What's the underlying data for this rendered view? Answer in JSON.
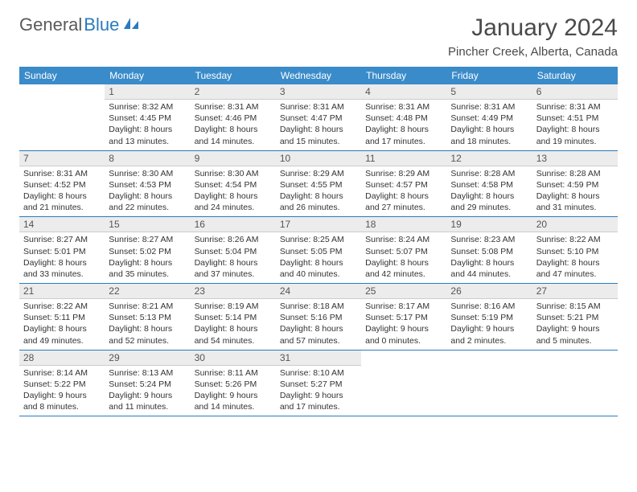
{
  "logo": {
    "text_gray": "General",
    "text_blue": "Blue"
  },
  "title": "January 2024",
  "location": "Pincher Creek, Alberta, Canada",
  "colors": {
    "header_bg": "#3a8bc9",
    "header_fg": "#ffffff",
    "row_border": "#2a7bbf",
    "daynum_bg": "#ececec",
    "text": "#333333"
  },
  "weekdays": [
    "Sunday",
    "Monday",
    "Tuesday",
    "Wednesday",
    "Thursday",
    "Friday",
    "Saturday"
  ],
  "weeks": [
    [
      {
        "n": "",
        "sr": "",
        "ss": "",
        "dl1": "",
        "dl2": ""
      },
      {
        "n": "1",
        "sr": "Sunrise: 8:32 AM",
        "ss": "Sunset: 4:45 PM",
        "dl1": "Daylight: 8 hours",
        "dl2": "and 13 minutes."
      },
      {
        "n": "2",
        "sr": "Sunrise: 8:31 AM",
        "ss": "Sunset: 4:46 PM",
        "dl1": "Daylight: 8 hours",
        "dl2": "and 14 minutes."
      },
      {
        "n": "3",
        "sr": "Sunrise: 8:31 AM",
        "ss": "Sunset: 4:47 PM",
        "dl1": "Daylight: 8 hours",
        "dl2": "and 15 minutes."
      },
      {
        "n": "4",
        "sr": "Sunrise: 8:31 AM",
        "ss": "Sunset: 4:48 PM",
        "dl1": "Daylight: 8 hours",
        "dl2": "and 17 minutes."
      },
      {
        "n": "5",
        "sr": "Sunrise: 8:31 AM",
        "ss": "Sunset: 4:49 PM",
        "dl1": "Daylight: 8 hours",
        "dl2": "and 18 minutes."
      },
      {
        "n": "6",
        "sr": "Sunrise: 8:31 AM",
        "ss": "Sunset: 4:51 PM",
        "dl1": "Daylight: 8 hours",
        "dl2": "and 19 minutes."
      }
    ],
    [
      {
        "n": "7",
        "sr": "Sunrise: 8:31 AM",
        "ss": "Sunset: 4:52 PM",
        "dl1": "Daylight: 8 hours",
        "dl2": "and 21 minutes."
      },
      {
        "n": "8",
        "sr": "Sunrise: 8:30 AM",
        "ss": "Sunset: 4:53 PM",
        "dl1": "Daylight: 8 hours",
        "dl2": "and 22 minutes."
      },
      {
        "n": "9",
        "sr": "Sunrise: 8:30 AM",
        "ss": "Sunset: 4:54 PM",
        "dl1": "Daylight: 8 hours",
        "dl2": "and 24 minutes."
      },
      {
        "n": "10",
        "sr": "Sunrise: 8:29 AM",
        "ss": "Sunset: 4:55 PM",
        "dl1": "Daylight: 8 hours",
        "dl2": "and 26 minutes."
      },
      {
        "n": "11",
        "sr": "Sunrise: 8:29 AM",
        "ss": "Sunset: 4:57 PM",
        "dl1": "Daylight: 8 hours",
        "dl2": "and 27 minutes."
      },
      {
        "n": "12",
        "sr": "Sunrise: 8:28 AM",
        "ss": "Sunset: 4:58 PM",
        "dl1": "Daylight: 8 hours",
        "dl2": "and 29 minutes."
      },
      {
        "n": "13",
        "sr": "Sunrise: 8:28 AM",
        "ss": "Sunset: 4:59 PM",
        "dl1": "Daylight: 8 hours",
        "dl2": "and 31 minutes."
      }
    ],
    [
      {
        "n": "14",
        "sr": "Sunrise: 8:27 AM",
        "ss": "Sunset: 5:01 PM",
        "dl1": "Daylight: 8 hours",
        "dl2": "and 33 minutes."
      },
      {
        "n": "15",
        "sr": "Sunrise: 8:27 AM",
        "ss": "Sunset: 5:02 PM",
        "dl1": "Daylight: 8 hours",
        "dl2": "and 35 minutes."
      },
      {
        "n": "16",
        "sr": "Sunrise: 8:26 AM",
        "ss": "Sunset: 5:04 PM",
        "dl1": "Daylight: 8 hours",
        "dl2": "and 37 minutes."
      },
      {
        "n": "17",
        "sr": "Sunrise: 8:25 AM",
        "ss": "Sunset: 5:05 PM",
        "dl1": "Daylight: 8 hours",
        "dl2": "and 40 minutes."
      },
      {
        "n": "18",
        "sr": "Sunrise: 8:24 AM",
        "ss": "Sunset: 5:07 PM",
        "dl1": "Daylight: 8 hours",
        "dl2": "and 42 minutes."
      },
      {
        "n": "19",
        "sr": "Sunrise: 8:23 AM",
        "ss": "Sunset: 5:08 PM",
        "dl1": "Daylight: 8 hours",
        "dl2": "and 44 minutes."
      },
      {
        "n": "20",
        "sr": "Sunrise: 8:22 AM",
        "ss": "Sunset: 5:10 PM",
        "dl1": "Daylight: 8 hours",
        "dl2": "and 47 minutes."
      }
    ],
    [
      {
        "n": "21",
        "sr": "Sunrise: 8:22 AM",
        "ss": "Sunset: 5:11 PM",
        "dl1": "Daylight: 8 hours",
        "dl2": "and 49 minutes."
      },
      {
        "n": "22",
        "sr": "Sunrise: 8:21 AM",
        "ss": "Sunset: 5:13 PM",
        "dl1": "Daylight: 8 hours",
        "dl2": "and 52 minutes."
      },
      {
        "n": "23",
        "sr": "Sunrise: 8:19 AM",
        "ss": "Sunset: 5:14 PM",
        "dl1": "Daylight: 8 hours",
        "dl2": "and 54 minutes."
      },
      {
        "n": "24",
        "sr": "Sunrise: 8:18 AM",
        "ss": "Sunset: 5:16 PM",
        "dl1": "Daylight: 8 hours",
        "dl2": "and 57 minutes."
      },
      {
        "n": "25",
        "sr": "Sunrise: 8:17 AM",
        "ss": "Sunset: 5:17 PM",
        "dl1": "Daylight: 9 hours",
        "dl2": "and 0 minutes."
      },
      {
        "n": "26",
        "sr": "Sunrise: 8:16 AM",
        "ss": "Sunset: 5:19 PM",
        "dl1": "Daylight: 9 hours",
        "dl2": "and 2 minutes."
      },
      {
        "n": "27",
        "sr": "Sunrise: 8:15 AM",
        "ss": "Sunset: 5:21 PM",
        "dl1": "Daylight: 9 hours",
        "dl2": "and 5 minutes."
      }
    ],
    [
      {
        "n": "28",
        "sr": "Sunrise: 8:14 AM",
        "ss": "Sunset: 5:22 PM",
        "dl1": "Daylight: 9 hours",
        "dl2": "and 8 minutes."
      },
      {
        "n": "29",
        "sr": "Sunrise: 8:13 AM",
        "ss": "Sunset: 5:24 PM",
        "dl1": "Daylight: 9 hours",
        "dl2": "and 11 minutes."
      },
      {
        "n": "30",
        "sr": "Sunrise: 8:11 AM",
        "ss": "Sunset: 5:26 PM",
        "dl1": "Daylight: 9 hours",
        "dl2": "and 14 minutes."
      },
      {
        "n": "31",
        "sr": "Sunrise: 8:10 AM",
        "ss": "Sunset: 5:27 PM",
        "dl1": "Daylight: 9 hours",
        "dl2": "and 17 minutes."
      },
      {
        "n": "",
        "sr": "",
        "ss": "",
        "dl1": "",
        "dl2": ""
      },
      {
        "n": "",
        "sr": "",
        "ss": "",
        "dl1": "",
        "dl2": ""
      },
      {
        "n": "",
        "sr": "",
        "ss": "",
        "dl1": "",
        "dl2": ""
      }
    ]
  ]
}
